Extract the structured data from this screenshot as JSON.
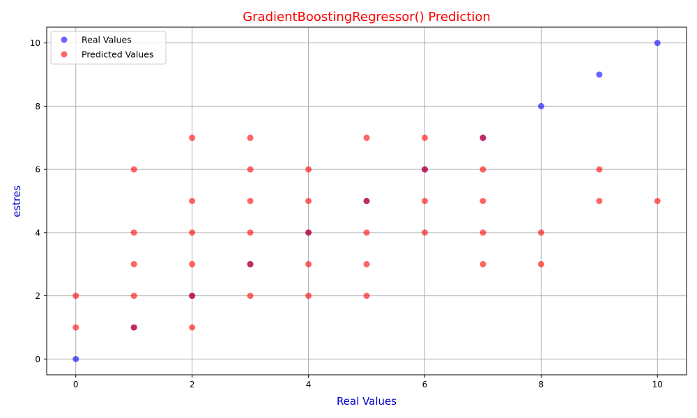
{
  "chart_data": {
    "type": "scatter",
    "title": "GradientBoostingRegressor() Prediction",
    "xlabel": "Real Values",
    "ylabel": "estres",
    "xlim": [
      -0.5,
      10.5
    ],
    "ylim": [
      -0.5,
      10.5
    ],
    "xticks": [
      0,
      2,
      4,
      6,
      8,
      10
    ],
    "yticks": [
      0,
      2,
      4,
      6,
      8,
      10
    ],
    "grid": true,
    "legend_position": "upper-left",
    "series": [
      {
        "name": "Real Values",
        "color": "#0000ff",
        "opacity": 0.6,
        "points": [
          [
            0,
            0
          ],
          [
            1,
            1
          ],
          [
            2,
            2
          ],
          [
            3,
            3
          ],
          [
            4,
            4
          ],
          [
            5,
            5
          ],
          [
            6,
            6
          ],
          [
            7,
            7
          ],
          [
            8,
            8
          ],
          [
            9,
            9
          ],
          [
            10,
            10
          ]
        ]
      },
      {
        "name": "Predicted Values",
        "color": "#ff0000",
        "opacity": 0.6,
        "points": [
          [
            0,
            1
          ],
          [
            0,
            2
          ],
          [
            1,
            1
          ],
          [
            1,
            2
          ],
          [
            1,
            3
          ],
          [
            1,
            4
          ],
          [
            1,
            6
          ],
          [
            2,
            1
          ],
          [
            2,
            2
          ],
          [
            2,
            3
          ],
          [
            2,
            4
          ],
          [
            2,
            5
          ],
          [
            2,
            7
          ],
          [
            3,
            2
          ],
          [
            3,
            3
          ],
          [
            3,
            4
          ],
          [
            3,
            5
          ],
          [
            3,
            6
          ],
          [
            3,
            7
          ],
          [
            4,
            2
          ],
          [
            4,
            3
          ],
          [
            4,
            4
          ],
          [
            4,
            5
          ],
          [
            4,
            6
          ],
          [
            5,
            2
          ],
          [
            5,
            3
          ],
          [
            5,
            4
          ],
          [
            5,
            5
          ],
          [
            5,
            7
          ],
          [
            6,
            4
          ],
          [
            6,
            5
          ],
          [
            6,
            6
          ],
          [
            6,
            7
          ],
          [
            7,
            3
          ],
          [
            7,
            4
          ],
          [
            7,
            5
          ],
          [
            7,
            6
          ],
          [
            7,
            7
          ],
          [
            8,
            3
          ],
          [
            8,
            4
          ],
          [
            9,
            5
          ],
          [
            9,
            6
          ],
          [
            10,
            5
          ]
        ]
      }
    ]
  },
  "colors": {
    "title": "#ff0000",
    "axis_title": "#0000cd",
    "grid": "#b0b0b0",
    "axes": "#000000"
  }
}
